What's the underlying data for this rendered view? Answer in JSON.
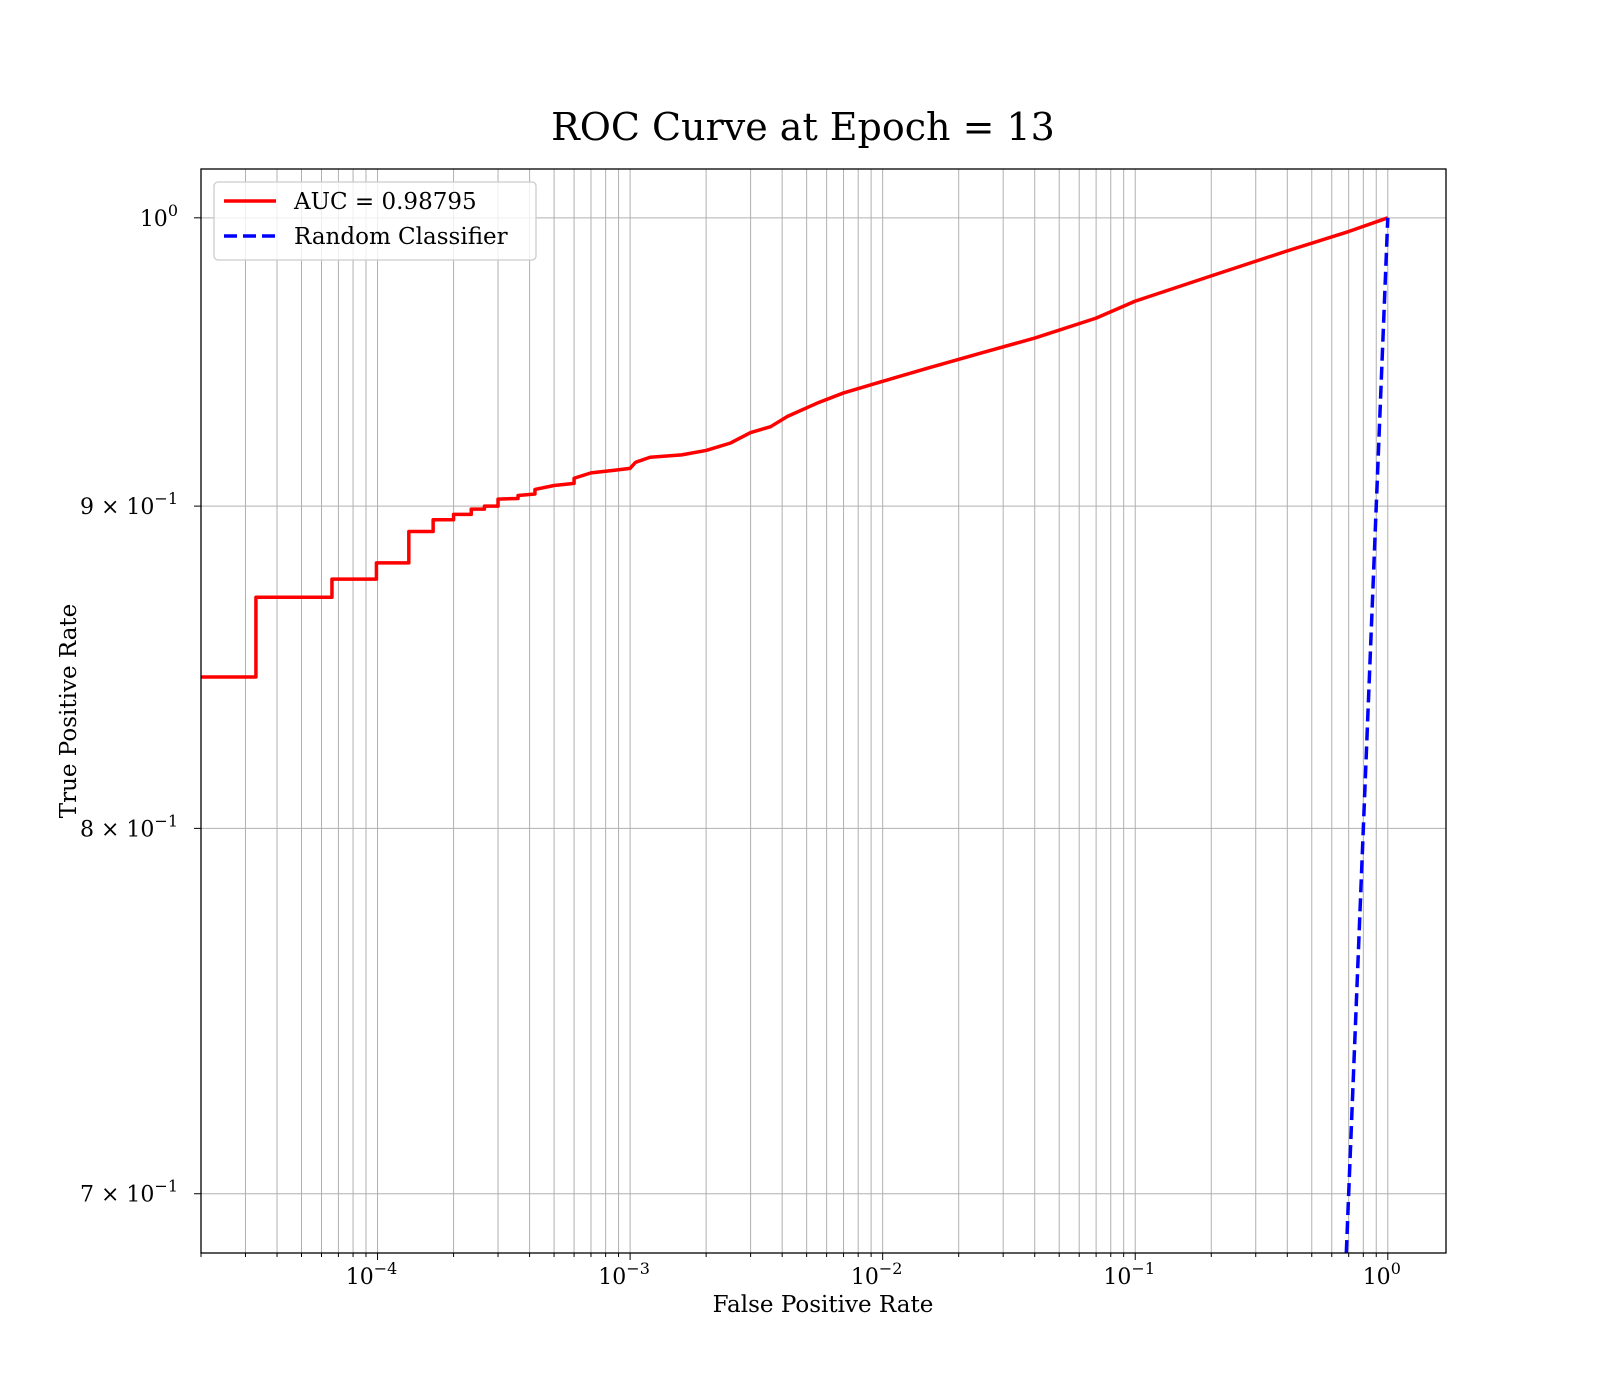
{
  "chart_data": {
    "type": "line",
    "title": "ROC Curve at Epoch = 13",
    "xlabel": "False Positive Rate",
    "ylabel": "True Positive Rate",
    "xscale": "log",
    "yscale": "log",
    "xlim": [
      2e-05,
      1.7
    ],
    "ylim": [
      0.685,
      1.018
    ],
    "grid": "major and minor (x), major (y)",
    "legend_position": "top-left",
    "x_ticks": [
      {
        "value": 0.0001,
        "label": "10",
        "exp": "−4"
      },
      {
        "value": 0.001,
        "label": "10",
        "exp": "−3"
      },
      {
        "value": 0.01,
        "label": "10",
        "exp": "−2"
      },
      {
        "value": 0.1,
        "label": "10",
        "exp": "−1"
      },
      {
        "value": 1,
        "label": "10",
        "exp": "0"
      }
    ],
    "y_ticks": [
      {
        "value": 1.0,
        "label": "10",
        "exp": "0"
      },
      {
        "value": 0.9,
        "label": "9 × 10",
        "exp": "−1"
      },
      {
        "value": 0.8,
        "label": "8 × 10",
        "exp": "−1"
      },
      {
        "value": 0.7,
        "label": "7 × 10",
        "exp": "−1"
      }
    ],
    "series": [
      {
        "name": "AUC = 0.98795",
        "color": "#ff0000",
        "style": "solid",
        "step": true,
        "points": [
          [
            2e-05,
            0.8455
          ],
          [
            3.3e-05,
            0.8455
          ],
          [
            3.3e-05,
            0.8705
          ],
          [
            6.6e-05,
            0.8705
          ],
          [
            6.6e-05,
            0.8763
          ],
          [
            9.9e-05,
            0.8763
          ],
          [
            9.9e-05,
            0.8815
          ],
          [
            0.000133,
            0.8815
          ],
          [
            0.000133,
            0.8917
          ],
          [
            0.000166,
            0.8917
          ],
          [
            0.000166,
            0.8955
          ],
          [
            0.0002,
            0.8955
          ],
          [
            0.0002,
            0.8973
          ],
          [
            0.000235,
            0.8973
          ],
          [
            0.000235,
            0.899
          ],
          [
            0.000265,
            0.899
          ],
          [
            0.000265,
            0.9
          ],
          [
            0.0003,
            0.9
          ],
          [
            0.0003,
            0.9023
          ],
          [
            0.00036,
            0.9025
          ],
          [
            0.00036,
            0.9035
          ],
          [
            0.00042,
            0.904
          ],
          [
            0.00042,
            0.9055
          ],
          [
            0.0005,
            0.9068
          ],
          [
            0.0006,
            0.9075
          ],
          [
            0.0006,
            0.9092
          ],
          [
            0.0007,
            0.911
          ],
          [
            0.00085,
            0.9118
          ],
          [
            0.001,
            0.9125
          ],
          [
            0.00105,
            0.9145
          ],
          [
            0.0012,
            0.9162
          ],
          [
            0.0016,
            0.917
          ],
          [
            0.002,
            0.9185
          ],
          [
            0.0025,
            0.921
          ],
          [
            0.003,
            0.9245
          ],
          [
            0.0036,
            0.9265
          ],
          [
            0.0042,
            0.93
          ],
          [
            0.0055,
            0.9345
          ],
          [
            0.007,
            0.938
          ],
          [
            0.01,
            0.942
          ],
          [
            0.015,
            0.9465
          ],
          [
            0.025,
            0.952
          ],
          [
            0.04,
            0.957
          ],
          [
            0.07,
            0.964
          ],
          [
            0.1,
            0.97
          ],
          [
            0.2,
            0.979
          ],
          [
            0.4,
            0.988
          ],
          [
            0.7,
            0.995
          ],
          [
            1.0,
            1.0
          ]
        ]
      },
      {
        "name": "Random Classifier",
        "color": "#0000ff",
        "style": "dashed",
        "step": false,
        "points": [
          [
            0.685,
            0.685
          ],
          [
            1.0,
            1.0
          ]
        ]
      }
    ]
  }
}
